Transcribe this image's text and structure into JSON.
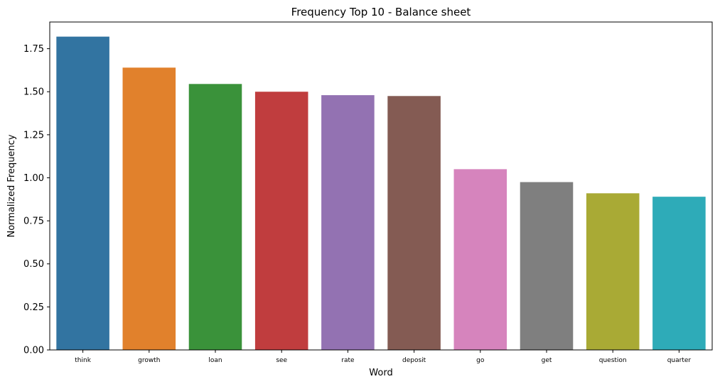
{
  "chart_data": {
    "type": "bar",
    "title": "Frequency Top 10 - Balance sheet",
    "xlabel": "Word",
    "ylabel": "Normalized Frequency",
    "categories": [
      "think",
      "growth",
      "loan",
      "see",
      "rate",
      "deposit",
      "go",
      "get",
      "question",
      "quarter"
    ],
    "values": [
      1.82,
      1.64,
      1.545,
      1.5,
      1.48,
      1.475,
      1.05,
      0.975,
      0.91,
      0.89
    ],
    "colors": [
      "#3274a1",
      "#e1812c",
      "#3a923a",
      "#c03d3e",
      "#9372b2",
      "#845b53",
      "#d684bd",
      "#7f7f7f",
      "#a9aa35",
      "#2eabb8"
    ],
    "ylim": [
      0,
      1.905
    ],
    "yticks": [
      0,
      0.25,
      0.5,
      0.75,
      1.0,
      1.25,
      1.5,
      1.75
    ],
    "ytick_labels": [
      "0.00",
      "0.25",
      "0.50",
      "0.75",
      "1.00",
      "1.25",
      "1.50",
      "1.75"
    ],
    "grid": false,
    "legend": "none"
  }
}
